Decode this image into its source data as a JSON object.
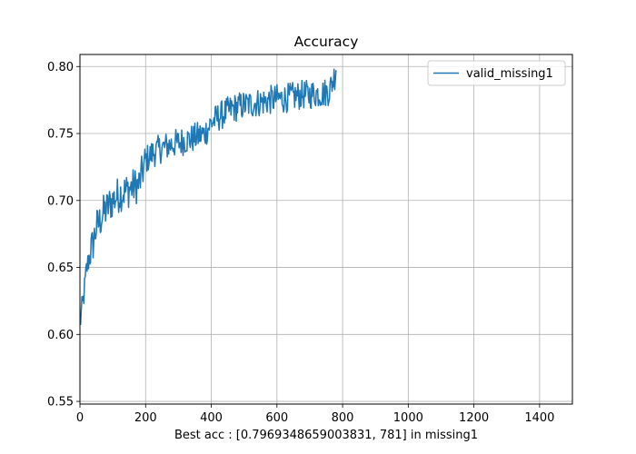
{
  "chart_data": {
    "type": "line",
    "title": "Accuracy",
    "xlabel": "Best acc : [0.7969348659003831, 781] in missing1",
    "ylabel": "",
    "xlim": [
      0,
      1500
    ],
    "ylim": [
      0.548,
      0.809
    ],
    "xticks": [
      0,
      200,
      400,
      600,
      800,
      1000,
      1200,
      1400
    ],
    "yticks": [
      0.55,
      0.6,
      0.65,
      0.7,
      0.75,
      0.8
    ],
    "ytick_labels": [
      "0.55",
      "0.60",
      "0.65",
      "0.70",
      "0.75",
      "0.80"
    ],
    "grid": true,
    "legend_position": "top-right",
    "series": [
      {
        "name": "valid_missing1",
        "color": "#1f77b4",
        "x": [
          0,
          10,
          20,
          30,
          40,
          50,
          60,
          70,
          80,
          90,
          100,
          120,
          140,
          160,
          180,
          200,
          220,
          240,
          260,
          280,
          300,
          320,
          340,
          360,
          380,
          400,
          420,
          440,
          460,
          480,
          500,
          520,
          540,
          560,
          580,
          600,
          620,
          640,
          660,
          680,
          700,
          720,
          740,
          760,
          781
        ],
        "y": [
          0.608,
          0.625,
          0.648,
          0.66,
          0.668,
          0.68,
          0.684,
          0.69,
          0.693,
          0.697,
          0.7,
          0.705,
          0.707,
          0.71,
          0.712,
          0.73,
          0.735,
          0.738,
          0.74,
          0.742,
          0.743,
          0.745,
          0.746,
          0.748,
          0.75,
          0.758,
          0.762,
          0.765,
          0.768,
          0.77,
          0.771,
          0.772,
          0.773,
          0.774,
          0.775,
          0.776,
          0.776,
          0.777,
          0.778,
          0.779,
          0.779,
          0.78,
          0.78,
          0.782,
          0.797
        ]
      }
    ]
  }
}
